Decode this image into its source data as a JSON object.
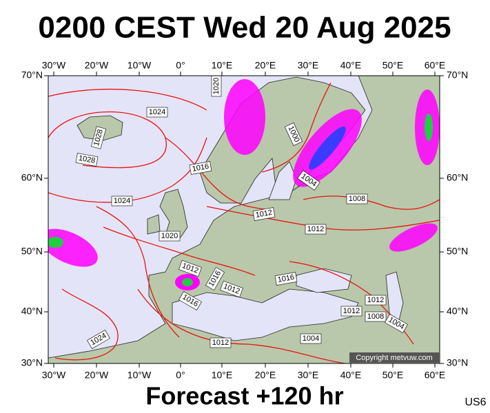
{
  "header": {
    "title": "0200 CEST Wed 20 Aug 2025"
  },
  "map": {
    "longitude_labels": [
      "30°W",
      "20°W",
      "10°W",
      "0°",
      "10°E",
      "20°E",
      "30°E",
      "40°E",
      "50°E",
      "60°E"
    ],
    "latitude_labels": [
      "70°N",
      "60°N",
      "50°N",
      "40°N",
      "30°N"
    ],
    "isobar_labels": [
      "1024",
      "1028",
      "1028",
      "1024",
      "1016",
      "1020",
      "1000",
      "1004",
      "1008",
      "1012",
      "1012",
      "1020",
      "1012",
      "1016",
      "1012",
      "1016",
      "1016",
      "1012",
      "1012",
      "1008",
      "1004",
      "1004",
      "1012",
      "1024"
    ],
    "copyright": "Copyright metvuw.com"
  },
  "footer": {
    "caption": "Forecast +120 hr",
    "code": "US6"
  }
}
